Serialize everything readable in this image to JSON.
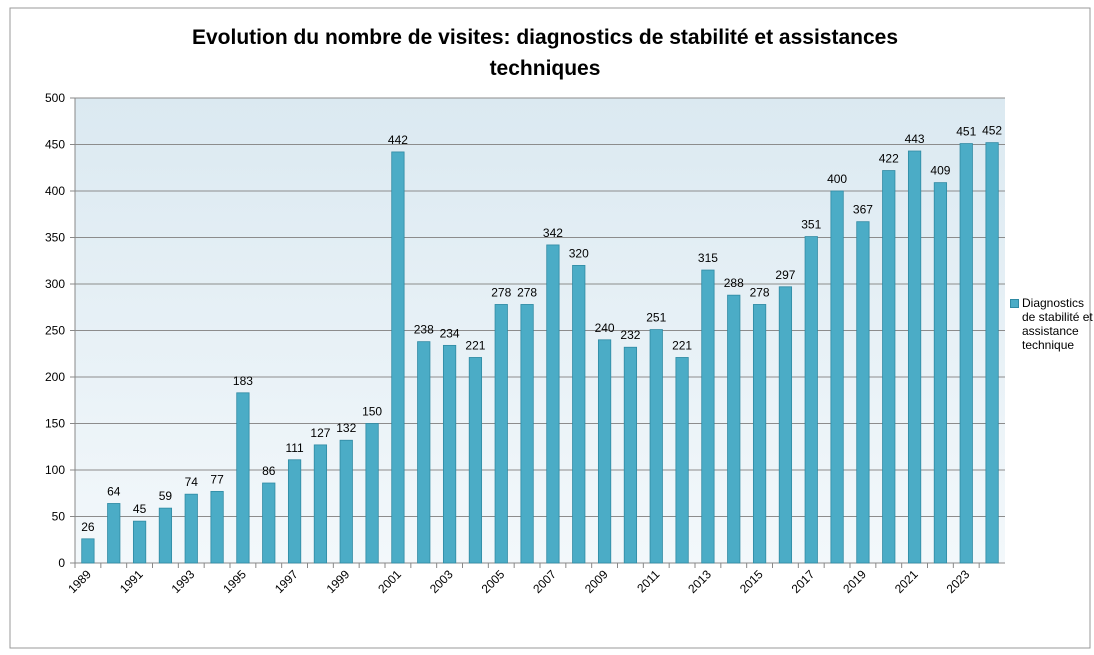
{
  "chart_data": {
    "type": "bar",
    "title": "Evolution du nombre de visites: diagnostics de stabilité et assistances techniques",
    "categories": [
      "1989",
      null,
      "1991",
      null,
      "1993",
      null,
      "1995",
      null,
      "1997",
      null,
      "1999",
      null,
      "2001",
      null,
      "2003",
      null,
      "2005",
      null,
      "2007",
      null,
      "2009",
      null,
      "2011",
      null,
      "2013",
      null,
      "2015",
      null,
      "2017",
      null,
      "2019",
      null,
      "2021",
      null,
      "2023",
      null
    ],
    "series": [
      {
        "name": "Diagnostics de stabilité et assistance technique",
        "color": "#4bacc6",
        "values": [
          26,
          64,
          45,
          59,
          74,
          77,
          183,
          86,
          111,
          127,
          132,
          150,
          442,
          238,
          234,
          221,
          278,
          278,
          342,
          320,
          240,
          232,
          251,
          221,
          315,
          288,
          278,
          297,
          351,
          400,
          367,
          422,
          443,
          409,
          451,
          452
        ]
      }
    ],
    "ylim": [
      0,
      500
    ],
    "yticks": [
      0,
      50,
      100,
      150,
      200,
      250,
      300,
      350,
      400,
      450,
      500
    ],
    "grid": true,
    "legend": "right"
  }
}
